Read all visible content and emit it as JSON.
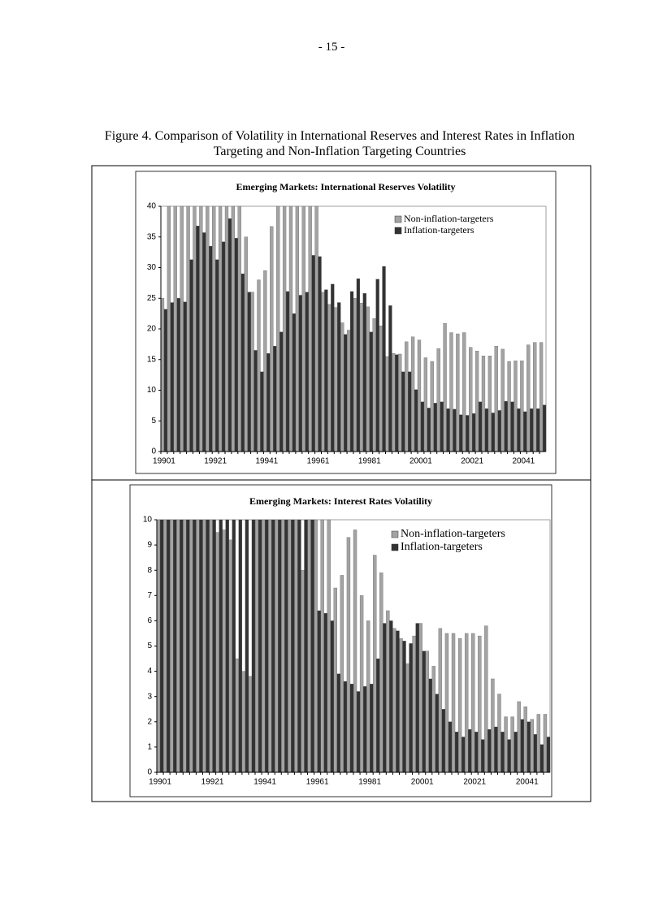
{
  "page_number": "- 15 -",
  "caption": "Figure 4.  Comparison of Volatility in International Reserves and Interest Rates in Inflation Targeting and Non-Inflation Targeting Countries",
  "chart_data": [
    {
      "type": "bar",
      "title": "Emerging Markets: International Reserves Volatility",
      "categories": [
        "19901",
        null,
        null,
        null,
        null,
        null,
        null,
        null,
        "19921",
        null,
        null,
        null,
        null,
        null,
        null,
        null,
        "19941",
        null,
        null,
        null,
        null,
        null,
        null,
        null,
        "19961",
        null,
        null,
        null,
        null,
        null,
        null,
        null,
        "19981",
        null,
        null,
        null,
        null,
        null,
        null,
        null,
        "20001",
        null,
        null,
        null,
        null,
        null,
        null,
        null,
        "20021",
        null,
        null,
        null,
        null,
        null,
        null,
        null,
        "20041",
        null,
        null,
        null
      ],
      "series": [
        {
          "name": "Non-inflation-targeters",
          "color": "#a3a3a3",
          "values": [
            25,
            40,
            40,
            40,
            40,
            40,
            40,
            40,
            40,
            40,
            40,
            40,
            40,
            35,
            26,
            28,
            29.5,
            36.7,
            40,
            40,
            40,
            40,
            40,
            40,
            40,
            26,
            24,
            23.5,
            21,
            19.8,
            25,
            24.2,
            23.6,
            21.7,
            20.5,
            15.5,
            16,
            15.9,
            17.9,
            18.7,
            18.2,
            15.3,
            14.7,
            16.8,
            20.9,
            19.4,
            19.2,
            19.4,
            17,
            16.4,
            15.6,
            15.6,
            17.2,
            16.7,
            14.7,
            14.8,
            14.8,
            17.4,
            17.8,
            17.8
          ]
        },
        {
          "name": "Inflation-targeters",
          "color": "#333333",
          "values": [
            23.2,
            24.3,
            25,
            24.4,
            31.3,
            36.8,
            35.7,
            33.5,
            31.3,
            34.2,
            38,
            34.8,
            29,
            26,
            16.5,
            13,
            16,
            17.2,
            19.5,
            26.1,
            22.5,
            25.5,
            26,
            32,
            31.8,
            26.4,
            27.3,
            24.3,
            19.1,
            26.1,
            28.2,
            25.8,
            19.5,
            28.1,
            30.2,
            23.8,
            15.8,
            13,
            13,
            10.1,
            8.1,
            7.1,
            7.9,
            8.1,
            7,
            6.9,
            6,
            5.9,
            6.2,
            8.1,
            7,
            6.3,
            6.7,
            8.2,
            8.1,
            7,
            6.5,
            7,
            7,
            7.6
          ]
        }
      ],
      "ylim": [
        0,
        40
      ],
      "yticks": [
        0,
        5,
        10,
        15,
        20,
        25,
        30,
        35,
        40
      ],
      "legend": "top-right"
    },
    {
      "type": "bar",
      "title": "Emerging Markets: Interest Rates Volatility",
      "categories": [
        "19901",
        null,
        null,
        null,
        null,
        null,
        null,
        null,
        "19921",
        null,
        null,
        null,
        null,
        null,
        null,
        null,
        "19941",
        null,
        null,
        null,
        null,
        null,
        null,
        null,
        "19961",
        null,
        null,
        null,
        null,
        null,
        null,
        null,
        "19981",
        null,
        null,
        null,
        null,
        null,
        null,
        null,
        "20001",
        null,
        null,
        null,
        null,
        null,
        null,
        null,
        "20021",
        null,
        null,
        null,
        null,
        null,
        null,
        null,
        "20041",
        null,
        null,
        null
      ],
      "series": [
        {
          "name": "Non-inflation-targeters",
          "color": "#a3a3a3",
          "values": [
            10,
            10,
            10,
            10,
            10,
            10,
            10,
            10,
            10,
            9.5,
            9.6,
            9.2,
            4.5,
            4,
            3.8,
            10,
            10,
            10,
            10,
            10,
            10,
            10,
            8,
            10,
            10,
            10,
            10,
            7.3,
            7.8,
            9.3,
            9.6,
            7,
            6,
            8.6,
            7.9,
            6.4,
            5.7,
            5.3,
            4.3,
            5.4,
            5.9,
            4.8,
            4.2,
            5.7,
            5.5,
            5.5,
            5.3,
            5.5,
            5.5,
            5.4,
            5.8,
            3.7,
            3.1,
            2.2,
            2.2,
            2.8,
            2.6,
            2.1,
            2.3,
            2.3
          ]
        },
        {
          "name": "Inflation-targeters",
          "color": "#333333",
          "values": [
            10,
            10,
            10,
            10,
            10,
            10,
            10,
            10,
            10,
            10,
            10,
            10,
            10,
            10,
            10,
            10,
            10,
            10,
            10,
            10,
            10,
            10,
            10,
            10,
            6.4,
            6.3,
            6,
            3.9,
            3.6,
            3.5,
            3.2,
            3.4,
            3.5,
            4.5,
            5.9,
            6,
            5.6,
            5.2,
            5.1,
            5.9,
            4.8,
            3.7,
            3.1,
            2.5,
            2,
            1.6,
            1.4,
            1.7,
            1.6,
            1.3,
            1.7,
            1.8,
            1.6,
            1.3,
            1.6,
            2.1,
            2,
            1.5,
            1.1,
            1.4
          ]
        }
      ],
      "ylim": [
        0,
        10
      ],
      "yticks": [
        0,
        1,
        2,
        3,
        4,
        5,
        6,
        7,
        8,
        9,
        10
      ],
      "legend": "top-right"
    }
  ]
}
